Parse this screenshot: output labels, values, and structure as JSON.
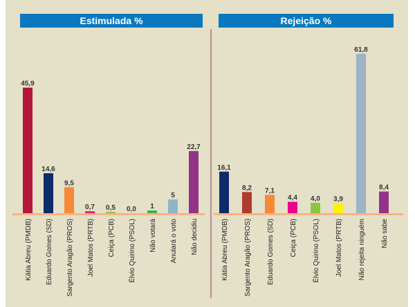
{
  "chart_data": [
    {
      "type": "bar",
      "title": "Estimulada %",
      "categories": [
        "Kátia Abreu (PMDB)",
        "Eduardo Gomes (SD)",
        "Sargento Aragão (PROS)",
        "Joel Matos (PRTB)",
        "Ceiça (PCB)",
        "Élvio Quirino (PSOL)",
        "Não votará",
        "Anulará o voto",
        "Não decidiu"
      ],
      "values": [
        45.9,
        14.6,
        9.5,
        0.7,
        0.5,
        0.0,
        1,
        5,
        22.7
      ],
      "value_labels": [
        "45,9",
        "14,6",
        "9,5",
        "0,7",
        "0,5",
        "0,0",
        "1",
        "5",
        "22,7"
      ],
      "colors": [
        "#b5173a",
        "#0d2a6b",
        "#f7883a",
        "#e8197d",
        "#8cc63f",
        "#8cc63f",
        "#39b54a",
        "#93b3c9",
        "#93338a"
      ],
      "ylim": [
        0,
        46
      ]
    },
    {
      "type": "bar",
      "title": "Rejeição %",
      "categories": [
        "Kátia Abreu (PMDB)",
        "Sargento Aragão (PROS)",
        "Eduardo Gomes (SD)",
        "Ceiça (PCB)",
        "Élvio Quirino (PSOL)",
        "Joel Matos (PRTB)",
        "Não rejeita ninguém",
        "Não sabe"
      ],
      "values": [
        16.1,
        8.2,
        7.1,
        4.4,
        4.0,
        3.9,
        61.8,
        8.4
      ],
      "value_labels": [
        "16,1",
        "8,2",
        "7,1",
        "4,4",
        "4,0",
        "3,9",
        "61,8",
        "8,4"
      ],
      "colors": [
        "#0d2a6b",
        "#b03a2e",
        "#f7883a",
        "#ec008c",
        "#8cc63f",
        "#fff200",
        "#9cb4c4",
        "#93338a"
      ],
      "ylim": [
        0,
        62
      ]
    }
  ]
}
